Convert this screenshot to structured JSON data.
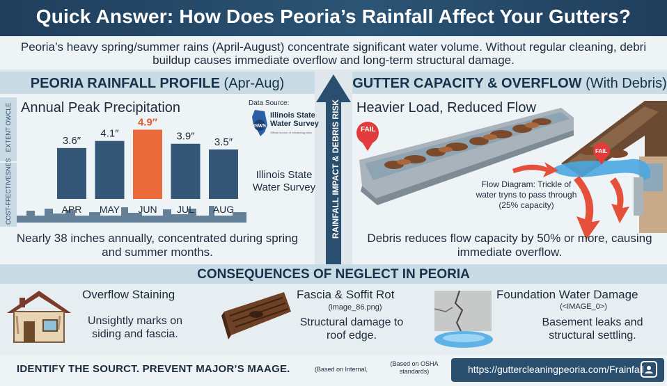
{
  "header": {
    "title": "Quick Answer: How Does Peoria’s Rainfall Affect Your Gutters?"
  },
  "intro": {
    "text": "Peoria’s heavy spring/summer rains (April-August) concentrate significant water volume. Without regular cleaning, debri buildup causes immediate overflow  and long-term structural damage."
  },
  "left_panel": {
    "title_bold": "PEORIA RAINFALL PROFILE",
    "title_light": " (Apr-Aug)",
    "side_tab_top": "EXTENT OWCLE",
    "side_tab_bottom": "COST-FFECTIVESNES",
    "chart_title": "Annual Peak Precipitation",
    "source_label": "Data Source:",
    "source_name": "Illinois State Water Survey",
    "source_logo": "ISWS",
    "source_fine_print": "Official source of climatology data",
    "source_caption": "Illinois State Water Survey",
    "caption": "Nearly 38 inches annually, concentrated during spring and summer months."
  },
  "chart_data": {
    "type": "bar",
    "categories": [
      "APR",
      "MAY",
      "JUN",
      "JUL",
      "AUG"
    ],
    "values": [
      3.6,
      4.1,
      4.9,
      3.9,
      3.5
    ],
    "labels": [
      "3.6″",
      "4.1″",
      "4.9″",
      "3.9″",
      "3.5″"
    ],
    "highlight_index": 2,
    "colors": {
      "bar": "#355777",
      "highlight": "#ea6a3c",
      "highlight_label": "#e2592b"
    },
    "title": "Annual Peak Precipitation",
    "ylim": [
      0,
      6.2
    ]
  },
  "center": {
    "arrow_label": "RAINFALL IMPACT & DEBRIS RISK"
  },
  "right_panel": {
    "title_bold": "GUTTER CAPACITY & OVERFLOW",
    "title_light": " (With Debris)",
    "subtitle": "Heavier Load, Reduced Flow",
    "fail_label_1": "FAIL",
    "fail_label_2": "FAIL",
    "flow_text": "Flow Diagram: Trickle of water tryns to pass through (25% capacity)",
    "caption": "Debris reduces flow capacity by 50% or more, causing immediate overflow."
  },
  "consequences": {
    "title": "CONSEQUENCES OF NEGLECT IN PEORIA",
    "items": [
      {
        "title": "Overflow Staining",
        "subtitle": "",
        "desc": "Unsightly marks on siding and fascia.",
        "icon": "house-icon"
      },
      {
        "title": "Fascia & Soffit  Rot",
        "subtitle": "(image_86.png)",
        "desc": "Structural damage to roof edge.",
        "icon": "rotten-wood-icon"
      },
      {
        "title": "Foundation Water Damage",
        "subtitle": "(<IMAGE_0>)",
        "desc": "Basement leaks and structural settling.",
        "icon": "cracked-foundation-icon"
      }
    ]
  },
  "footer": {
    "slogan": "IDENTIFY THE SOURCT. PREVENT MAJOR’S MAAGE.",
    "note1": "(Based on Internal,",
    "note2": "(Based on OSHA standards)",
    "url": "https://guttercleaningpeoria.com/Frainfall",
    "url_icon": "contact-card-icon"
  },
  "colors": {
    "header": "#1f3e5c",
    "panel_head": "#c9dce6",
    "accent": "#ea6a3c",
    "url_pill": "#2a4f6e"
  }
}
